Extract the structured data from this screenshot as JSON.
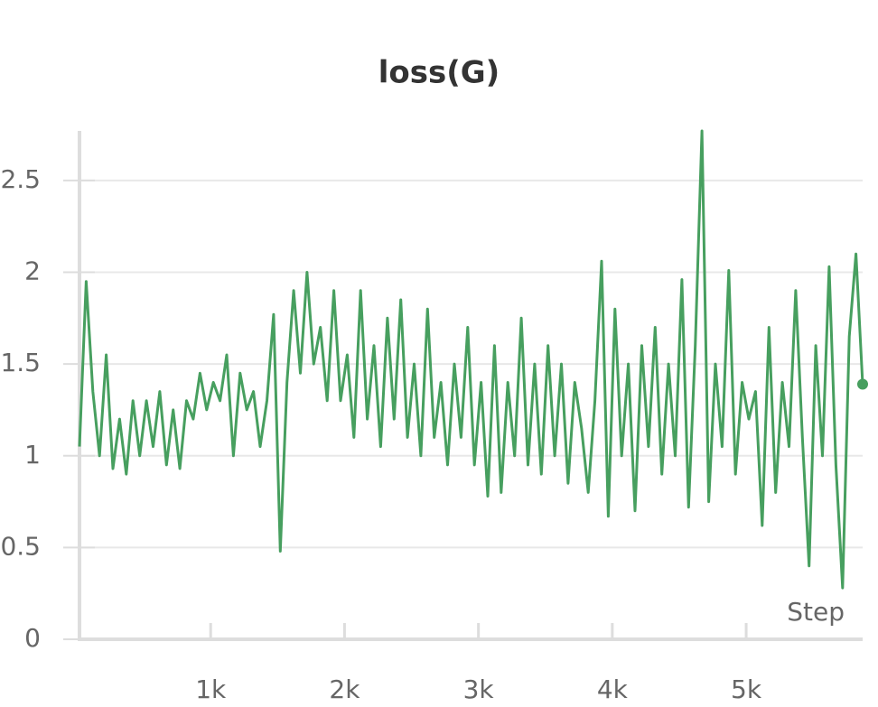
{
  "chart_data": {
    "type": "line",
    "title": "loss(G)",
    "x_label": "Step",
    "x": [
      20,
      70,
      120,
      170,
      220,
      270,
      320,
      370,
      420,
      470,
      520,
      570,
      620,
      670,
      720,
      770,
      820,
      870,
      920,
      970,
      1020,
      1070,
      1120,
      1170,
      1220,
      1270,
      1320,
      1370,
      1420,
      1470,
      1520,
      1570,
      1620,
      1670,
      1720,
      1770,
      1820,
      1870,
      1920,
      1970,
      2020,
      2070,
      2120,
      2170,
      2220,
      2270,
      2320,
      2370,
      2420,
      2470,
      2520,
      2570,
      2620,
      2670,
      2720,
      2770,
      2820,
      2870,
      2920,
      2970,
      3020,
      3070,
      3120,
      3170,
      3220,
      3270,
      3320,
      3370,
      3420,
      3470,
      3520,
      3570,
      3620,
      3670,
      3720,
      3770,
      3820,
      3870,
      3920,
      3970,
      4020,
      4070,
      4120,
      4170,
      4220,
      4270,
      4320,
      4370,
      4420,
      4470,
      4520,
      4570,
      4620,
      4670,
      4720,
      4770,
      4820,
      4870,
      4920,
      4970,
      5020,
      5070,
      5120,
      5170,
      5220,
      5270,
      5320,
      5370,
      5420,
      5470,
      5520,
      5570,
      5620,
      5670,
      5720,
      5770,
      5820,
      5870
    ],
    "series": [
      {
        "color": "#479f5f",
        "values": [
          1.05,
          1.95,
          1.35,
          1.0,
          1.55,
          0.93,
          1.2,
          0.9,
          1.3,
          1.0,
          1.3,
          1.05,
          1.35,
          0.95,
          1.25,
          0.93,
          1.3,
          1.2,
          1.45,
          1.25,
          1.4,
          1.3,
          1.55,
          1.0,
          1.45,
          1.25,
          1.35,
          1.05,
          1.3,
          1.77,
          0.48,
          1.4,
          1.9,
          1.45,
          2.0,
          1.5,
          1.7,
          1.3,
          1.9,
          1.3,
          1.55,
          1.1,
          1.9,
          1.2,
          1.6,
          1.05,
          1.75,
          1.2,
          1.85,
          1.1,
          1.5,
          1.0,
          1.8,
          1.1,
          1.4,
          0.95,
          1.5,
          1.1,
          1.7,
          0.95,
          1.4,
          0.78,
          1.6,
          0.8,
          1.4,
          1.0,
          1.75,
          0.95,
          1.5,
          0.9,
          1.6,
          1.0,
          1.5,
          0.85,
          1.4,
          1.15,
          0.8,
          1.3,
          2.06,
          0.67,
          1.8,
          1.0,
          1.5,
          0.7,
          1.6,
          1.05,
          1.7,
          0.9,
          1.5,
          1.0,
          1.96,
          0.72,
          1.6,
          2.77,
          0.75,
          1.5,
          1.05,
          2.01,
          0.9,
          1.4,
          1.2,
          1.35,
          0.62,
          1.7,
          0.8,
          1.4,
          1.05,
          1.9,
          1.1,
          0.4,
          1.6,
          1.0,
          2.03,
          0.95,
          0.28,
          1.65,
          2.1,
          1.39
        ]
      }
    ],
    "xlim": [
      0,
      5870
    ],
    "ylim": [
      0,
      2.77
    ],
    "xticks": [
      {
        "value": 1000,
        "label": "1k"
      },
      {
        "value": 2000,
        "label": "2k"
      },
      {
        "value": 3000,
        "label": "3k"
      },
      {
        "value": 4000,
        "label": "4k"
      },
      {
        "value": 5000,
        "label": "5k"
      }
    ],
    "yticks": [
      0,
      0.5,
      1,
      1.5,
      2,
      2.5
    ],
    "grid": true
  }
}
